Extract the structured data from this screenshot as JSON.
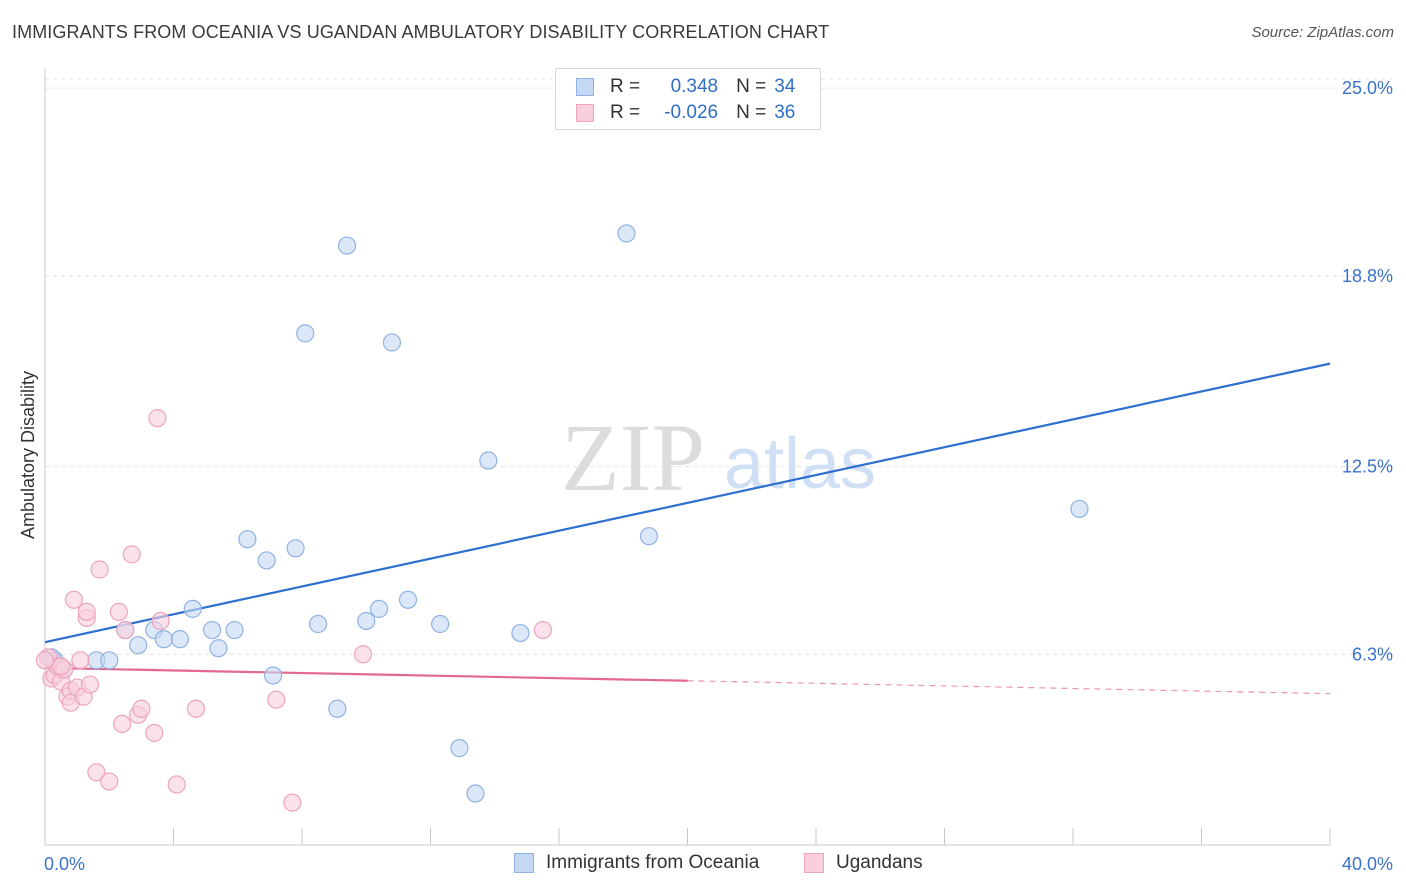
{
  "header": {
    "title": "IMMIGRANTS FROM OCEANIA VS UGANDAN AMBULATORY DISABILITY CORRELATION CHART",
    "source": "Source: ZipAtlas.com"
  },
  "watermark": {
    "zip": "ZIP",
    "atlas": "atlas"
  },
  "legend": {
    "r_label": "R =",
    "n_label": "N =",
    "series": [
      {
        "r": "0.348",
        "n": "34"
      },
      {
        "r": "-0.026",
        "n": "36"
      }
    ]
  },
  "colors": {
    "blue_fill": "#c5d9f4",
    "blue_stroke": "#8fb2e3",
    "blue_line": "#2e6fcf",
    "pink_fill": "#f9cfdc",
    "pink_stroke": "#eda4bc",
    "pink_line": "#e36990",
    "tick_text": "#3a72c9",
    "grid": "#e3e3e3"
  },
  "chart_data": {
    "type": "scatter",
    "title": "IMMIGRANTS FROM OCEANIA VS UGANDAN AMBULATORY DISABILITY CORRELATION CHART",
    "xlabel": "",
    "ylabel": "Ambulatory Disability",
    "xlim": [
      0,
      40
    ],
    "ylim": [
      0,
      25.5
    ],
    "x_tick_labels": [
      "0.0%",
      "40.0%"
    ],
    "y_ticks": [
      {
        "value": 6.3,
        "label": "6.3%"
      },
      {
        "value": 12.5,
        "label": "12.5%"
      },
      {
        "value": 18.8,
        "label": "18.8%"
      },
      {
        "value": 25.0,
        "label": "25.0%"
      }
    ],
    "legend_position": "top-center",
    "series": [
      {
        "name": "Immigrants from Oceania",
        "color": "blue",
        "r": 0.348,
        "n": 34,
        "trend": {
          "x0": 0,
          "y0": 6.7,
          "x1": 40,
          "y1": 15.9,
          "solid_until": 40
        },
        "points": [
          [
            0.3,
            6.1
          ],
          [
            0.6,
            5.8
          ],
          [
            1.6,
            6.1
          ],
          [
            2.0,
            6.1
          ],
          [
            2.5,
            7.1
          ],
          [
            2.9,
            6.6
          ],
          [
            3.4,
            7.1
          ],
          [
            3.7,
            6.8
          ],
          [
            4.2,
            6.8
          ],
          [
            4.6,
            7.8
          ],
          [
            5.2,
            7.1
          ],
          [
            5.4,
            6.5
          ],
          [
            5.9,
            7.1
          ],
          [
            6.3,
            10.1
          ],
          [
            6.9,
            9.4
          ],
          [
            7.1,
            5.6
          ],
          [
            7.8,
            9.8
          ],
          [
            8.1,
            16.9
          ],
          [
            8.5,
            7.3
          ],
          [
            9.1,
            4.5
          ],
          [
            9.4,
            19.8
          ],
          [
            10.0,
            7.4
          ],
          [
            10.4,
            7.8
          ],
          [
            10.8,
            16.6
          ],
          [
            11.3,
            8.1
          ],
          [
            12.3,
            7.3
          ],
          [
            12.9,
            3.2
          ],
          [
            13.4,
            1.7
          ],
          [
            13.8,
            12.7
          ],
          [
            14.8,
            7.0
          ],
          [
            18.1,
            20.2
          ],
          [
            18.8,
            10.2
          ],
          [
            32.2,
            11.1
          ],
          [
            0.2,
            6.2
          ]
        ]
      },
      {
        "name": "Ugandans",
        "color": "pink",
        "r": -0.026,
        "n": 36,
        "trend": {
          "x0": 0,
          "y0": 5.85,
          "x1": 40,
          "y1": 5.0,
          "solid_until": 20
        },
        "points": [
          [
            0.1,
            6.2
          ],
          [
            0.2,
            5.5
          ],
          [
            0.3,
            5.6
          ],
          [
            0.4,
            5.9
          ],
          [
            0.5,
            5.4
          ],
          [
            0.6,
            5.8
          ],
          [
            0.7,
            4.9
          ],
          [
            0.8,
            5.1
          ],
          [
            0.8,
            4.7
          ],
          [
            0.9,
            8.1
          ],
          [
            1.0,
            5.2
          ],
          [
            1.1,
            6.1
          ],
          [
            1.2,
            4.9
          ],
          [
            1.3,
            7.5
          ],
          [
            1.3,
            7.7
          ],
          [
            1.4,
            5.3
          ],
          [
            1.6,
            2.4
          ],
          [
            1.7,
            9.1
          ],
          [
            2.0,
            2.1
          ],
          [
            2.3,
            7.7
          ],
          [
            2.4,
            4.0
          ],
          [
            2.5,
            7.1
          ],
          [
            2.7,
            9.6
          ],
          [
            2.9,
            4.3
          ],
          [
            3.0,
            4.5
          ],
          [
            3.4,
            3.7
          ],
          [
            3.5,
            14.1
          ],
          [
            3.6,
            7.4
          ],
          [
            4.1,
            2.0
          ],
          [
            4.7,
            4.5
          ],
          [
            7.2,
            4.8
          ],
          [
            7.7,
            1.4
          ],
          [
            9.9,
            6.3
          ],
          [
            15.5,
            7.1
          ],
          [
            0.0,
            6.1
          ],
          [
            0.5,
            5.9
          ]
        ]
      }
    ]
  },
  "bottom_legend": [
    "Immigrants from Oceania",
    "Ugandans"
  ]
}
